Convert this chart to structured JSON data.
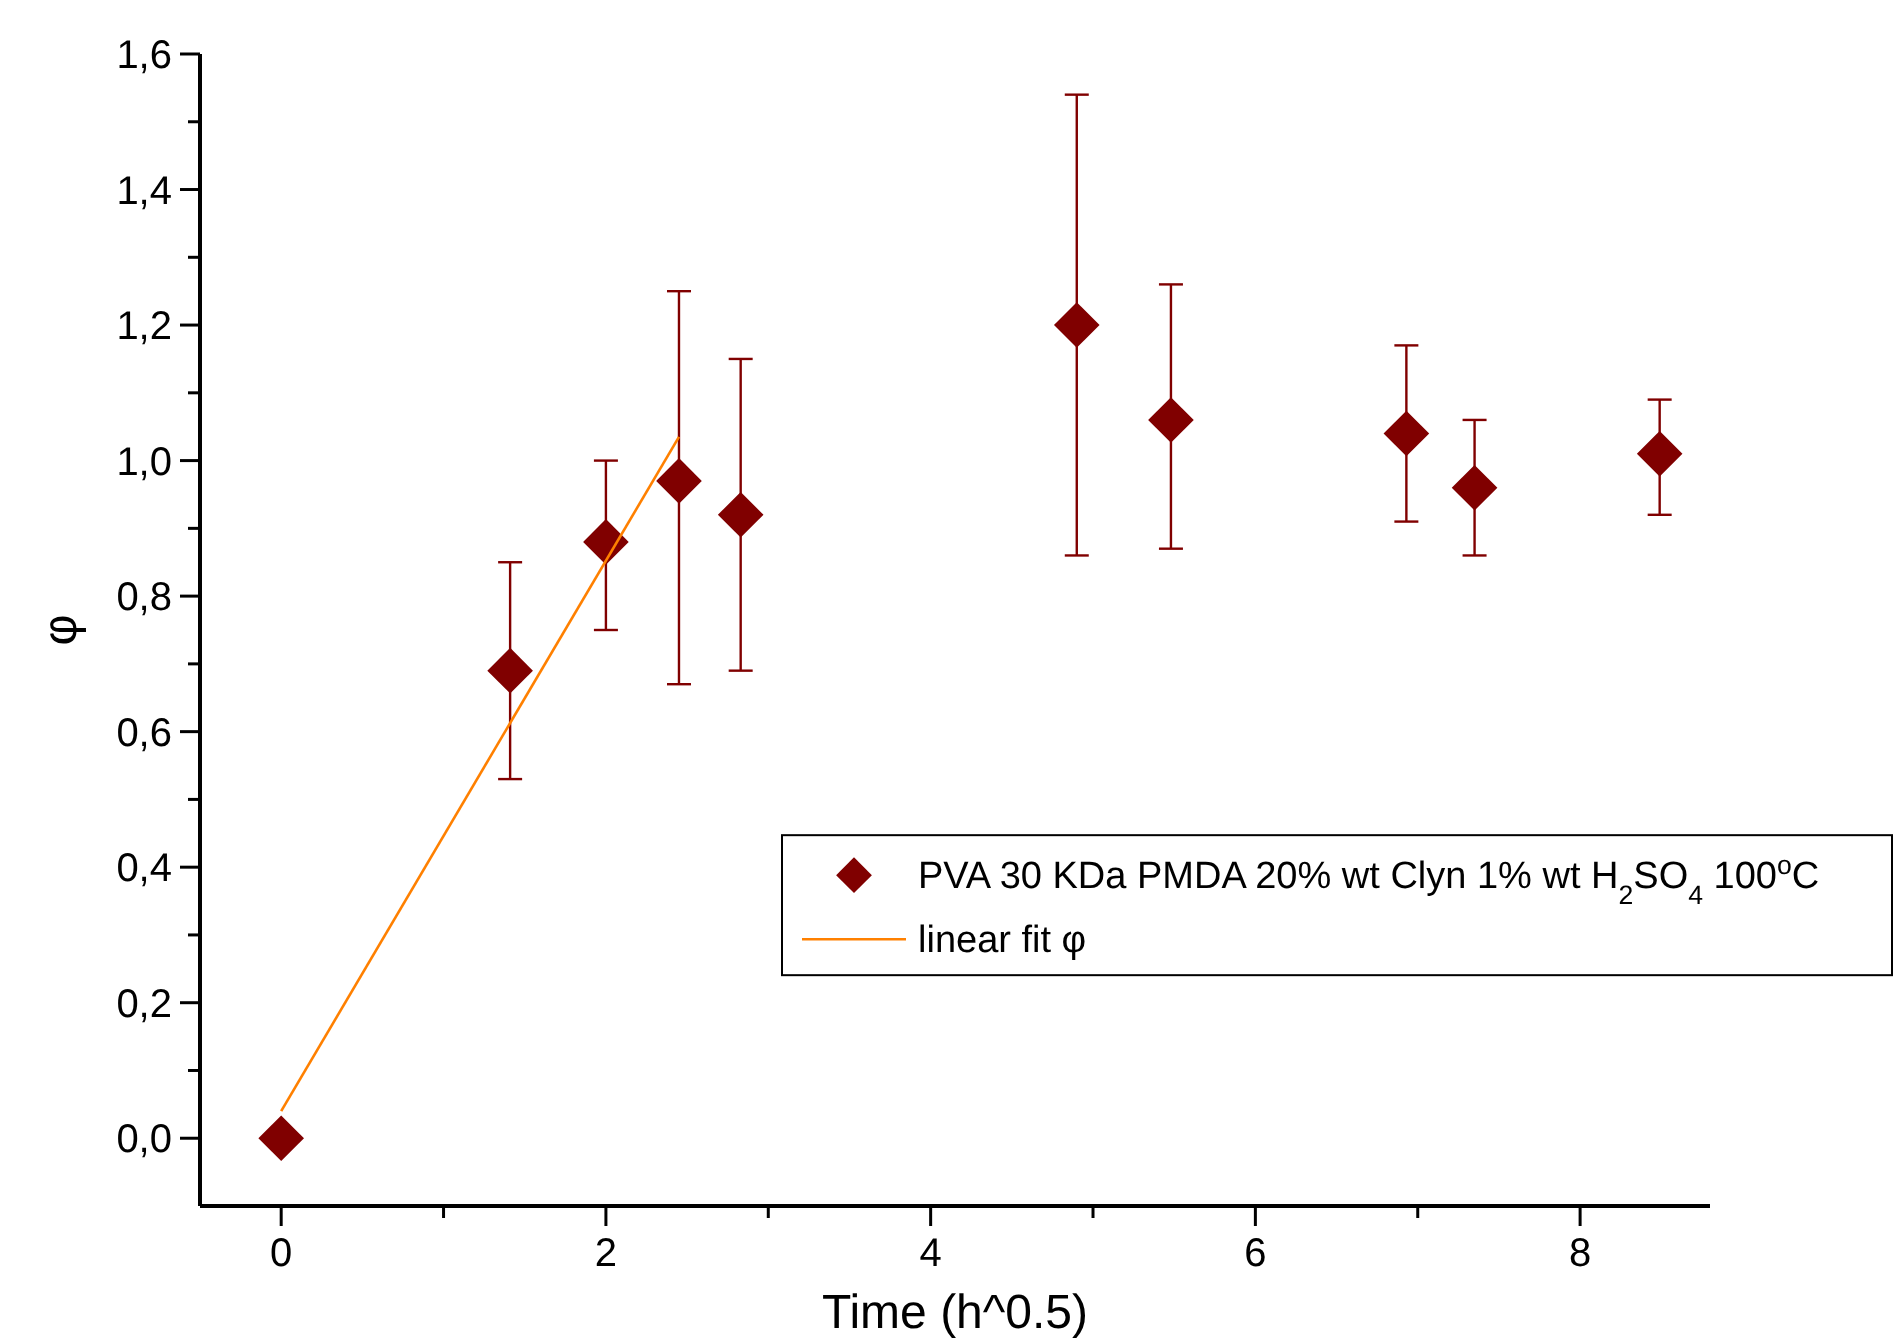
{
  "chart_data": {
    "type": "scatter",
    "xlabel": "Time (h^0.5)",
    "ylabel": "φ",
    "xlim": [
      -0.5,
      8.8
    ],
    "ylim": [
      -0.1,
      1.6
    ],
    "xticks": [
      0,
      {
        "value": 1,
        "label": null
      },
      2,
      {
        "value": 3,
        "label": null
      },
      4,
      {
        "value": 5,
        "label": null
      },
      6,
      {
        "value": 7,
        "label": null
      },
      8
    ],
    "yticks": [
      {
        "value": 0,
        "label": "0,0"
      },
      {
        "value": 0.1,
        "label": null
      },
      {
        "value": 0.2,
        "label": "0,2"
      },
      {
        "value": 0.3,
        "label": null
      },
      {
        "value": 0.4,
        "label": "0,4"
      },
      {
        "value": 0.5,
        "label": null
      },
      {
        "value": 0.6,
        "label": "0,6"
      },
      {
        "value": 0.7,
        "label": null
      },
      {
        "value": 0.8,
        "label": "0,8"
      },
      {
        "value": 0.9,
        "label": null
      },
      {
        "value": 1.0,
        "label": "1,0"
      },
      {
        "value": 1.1,
        "label": null
      },
      {
        "value": 1.2,
        "label": "1,2"
      },
      {
        "value": 1.3,
        "label": null
      },
      {
        "value": 1.4,
        "label": "1,4"
      },
      {
        "value": 1.5,
        "label": null
      },
      {
        "value": 1.6,
        "label": "1,6"
      }
    ],
    "grid": false,
    "legend": "right",
    "marker": "diamond",
    "series": [
      {
        "name": "PVA 30 KDa PMDA 20% wt Clyn 1% wt H$_{2}$SO$_{4}$ 100$^{o}$C",
        "color": "#800000",
        "x": [
          0,
          1.41,
          2,
          2.45,
          2.83,
          4.9,
          5.48,
          6.93,
          7.35,
          8.49
        ],
        "values": [
          0,
          0.69,
          0.88,
          0.97,
          0.92,
          1.2,
          1.06,
          1.04,
          0.96,
          1.01
        ],
        "errors": [
          null,
          [
            0.53,
            0.85
          ],
          [
            0.75,
            1.0
          ],
          [
            0.67,
            1.25
          ],
          [
            0.69,
            1.15
          ],
          [
            0.86,
            1.54
          ],
          [
            0.87,
            1.26
          ],
          [
            0.91,
            1.17
          ],
          [
            0.86,
            1.06
          ],
          [
            0.92,
            1.09
          ]
        ]
      },
      {
        "name": "linear fit φ",
        "type": "line",
        "color": "#ff8000",
        "marker": "none",
        "line_style": "solid",
        "x": [
          0,
          2.45
        ],
        "values": [
          0.04,
          1.035
        ]
      }
    ]
  }
}
